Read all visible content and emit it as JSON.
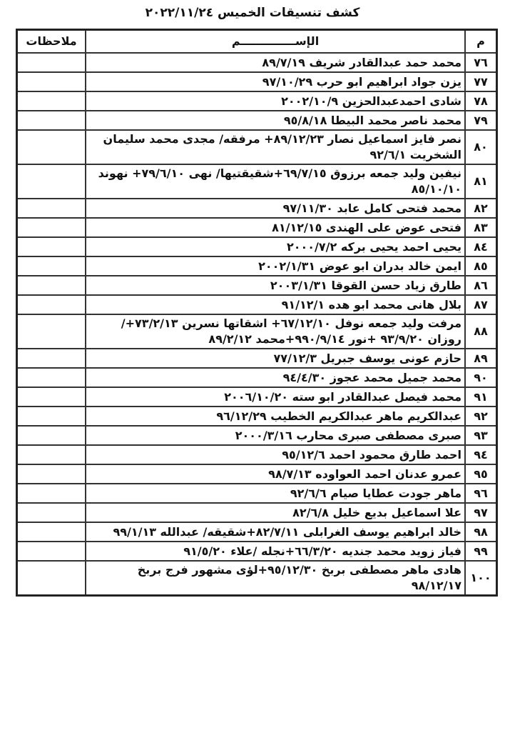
{
  "title": "كشف تنسيقات الخميس ٢٠٢٢/١١/٢٤",
  "headers": {
    "number": "م",
    "name": "الإســــــــــــــم",
    "notes": "ملاحظات"
  },
  "rows": [
    {
      "n": "٧٦",
      "name": "محمد حمد عبدالقادر شريف ٨٩/٧/١٩",
      "notes": ""
    },
    {
      "n": "٧٧",
      "name": "يزن جواد ابراهيم ابو حرب ٩٧/١٠/٢٩",
      "notes": ""
    },
    {
      "n": "٧٨",
      "name": "شادى احمدعبدالحزين ٢٠٠٢/١٠/٩",
      "notes": ""
    },
    {
      "n": "٧٩",
      "name": "محمد ناصر محمد البيطا ٩٥/٨/١٨",
      "notes": ""
    },
    {
      "n": "٨٠",
      "name": "نصر فايز اسماعيل نصار ٨٩/١٢/٢٣+ مرفقه/ مجدى محمد سليمان الشخريت ٩٢/٦/١",
      "notes": ""
    },
    {
      "n": "٨١",
      "name": "نيفين وليد جمعه برزوق ٦٩/٧/١٥+شقيقتيها/ نهى ٧٩/٦/١٠+ نهوند ٨٥/١٠/١٠",
      "notes": ""
    },
    {
      "n": "٨٢",
      "name": "محمد فتحى كامل عابد ٩٧/١١/٣٠",
      "notes": ""
    },
    {
      "n": "٨٣",
      "name": "فتحى عوض على الهندى ٨١/١٢/١٥",
      "notes": ""
    },
    {
      "n": "٨٤",
      "name": "يحيى احمد يحيى بركه ٢٠٠٠/٧/٢",
      "notes": ""
    },
    {
      "n": "٨٥",
      "name": "ايمن خالد بدران ابو عوض ٢٠٠٢/١/٣١",
      "notes": ""
    },
    {
      "n": "٨٦",
      "name": "طارق زياد حسن القوقا ٢٠٠٣/١/٣١",
      "notes": ""
    },
    {
      "n": "٨٧",
      "name": "بلال هانى محمد ابو هده ٩١/١٢/١",
      "notes": ""
    },
    {
      "n": "٨٨",
      "name": "مرفت وليد جمعه نوفل ٦٧/١٢/١٠+ اشقاتها نسرين ٧٣/٢/١٣+/ روزان ٩٣/٩/٢٠ +نور ٩٩٠/٩/١٤+محمد ٨٩/٢/١٢",
      "notes": ""
    },
    {
      "n": "٨٩",
      "name": "حازم عونى يوسف جبريل ٧٧/١٢/٣",
      "notes": ""
    },
    {
      "n": "٩٠",
      "name": "محمد جميل محمد عجوز ٩٤/٤/٣٠",
      "notes": ""
    },
    {
      "n": "٩١",
      "name": "محمد فيصل عبدالقادر ابو سته ٢٠٠٦/١٠/٢٠",
      "notes": ""
    },
    {
      "n": "٩٢",
      "name": "عبدالكريم ماهر عبدالكريم الخطيب ٩٦/١٢/٢٩",
      "notes": ""
    },
    {
      "n": "٩٣",
      "name": "صبرى مصطفى صبرى محارب ٢٠٠٠/٣/١٦",
      "notes": ""
    },
    {
      "n": "٩٤",
      "name": "احمد طارق محمود احمد ٩٥/١٢/٦",
      "notes": ""
    },
    {
      "n": "٩٥",
      "name": "عمرو عدنان احمد العواوده ٩٨/٧/١٣",
      "notes": ""
    },
    {
      "n": "٩٦",
      "name": "ماهر جودت عطايا صيام ٩٢/٦/٦",
      "notes": ""
    },
    {
      "n": "٩٧",
      "name": "علا اسماعيل بديع خليل ٨٢/٦/٨",
      "notes": ""
    },
    {
      "n": "٩٨",
      "name": "خالد ابراهيم يوسف الغرابلى ٨٢/٧/١١+شقيقه/ عبدالله ٩٩/١/١٣",
      "notes": ""
    },
    {
      "n": "٩٩",
      "name": "فياز زويد محمد جنديه ٦٦/٣/٢٠+نجله /علاء ٩١/٥/٢٠",
      "notes": ""
    },
    {
      "n": "١٠٠",
      "name": "هادى ماهر مصطفى بربخ ٩٥/١٢/٣٠+لؤى مشهور فرج بربخ ٩٨/١٢/١٧",
      "notes": ""
    }
  ]
}
